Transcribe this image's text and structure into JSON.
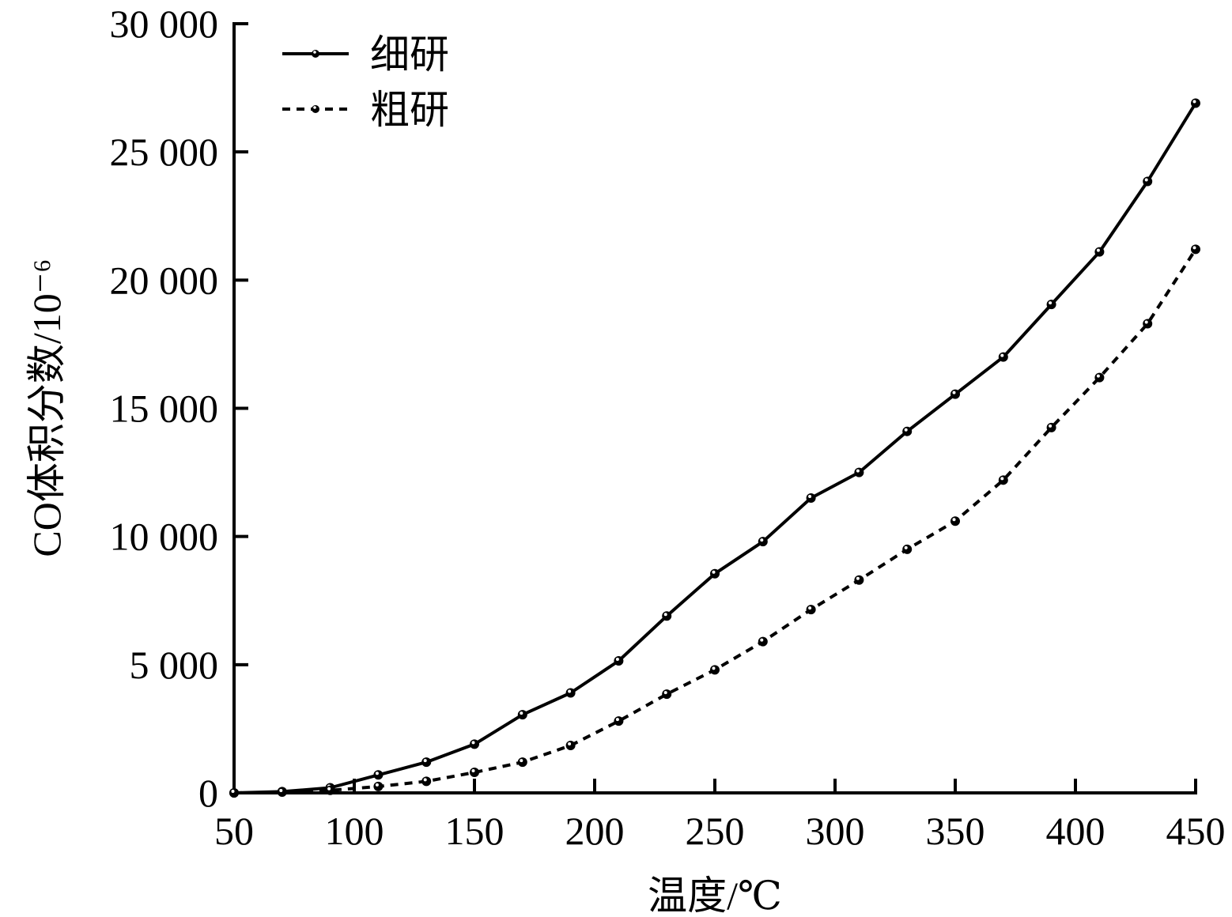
{
  "chart_data": {
    "type": "line",
    "title": "",
    "xlabel": "温度/℃",
    "ylabel": "CO体积分数/10⁻⁶",
    "xlim": [
      50,
      450
    ],
    "ylim": [
      0,
      30000
    ],
    "x_ticks": [
      50,
      100,
      150,
      200,
      250,
      300,
      350,
      400,
      450
    ],
    "x_tick_labels": [
      "50",
      "100",
      "150",
      "200",
      "250",
      "300",
      "350",
      "400",
      "450"
    ],
    "y_ticks": [
      0,
      5000,
      10000,
      15000,
      20000,
      25000,
      30000
    ],
    "y_tick_labels": [
      "0",
      "5 000",
      "10 000",
      "15 000",
      "20 000",
      "25 000",
      "30 000"
    ],
    "grid": false,
    "legend_position": "upper left",
    "x": [
      50,
      70,
      90,
      110,
      130,
      150,
      170,
      190,
      210,
      230,
      250,
      270,
      290,
      310,
      330,
      350,
      370,
      390,
      410,
      430,
      450
    ],
    "series": [
      {
        "name": "细研",
        "line_style": "solid",
        "marker": "circle",
        "values": [
          0,
          50,
          200,
          700,
          1200,
          1900,
          3050,
          3900,
          5150,
          6900,
          8550,
          9800,
          11500,
          12500,
          14100,
          15550,
          17000,
          19050,
          21100,
          23850,
          26900
        ]
      },
      {
        "name": "粗研",
        "line_style": "dashed",
        "marker": "circle",
        "values": [
          0,
          30,
          100,
          250,
          450,
          800,
          1200,
          1850,
          2800,
          3850,
          4800,
          5900,
          7150,
          8300,
          9500,
          10600,
          12200,
          14250,
          16200,
          18300,
          21200
        ]
      }
    ]
  },
  "colors": {
    "line": "#000000",
    "background": "#ffffff"
  }
}
